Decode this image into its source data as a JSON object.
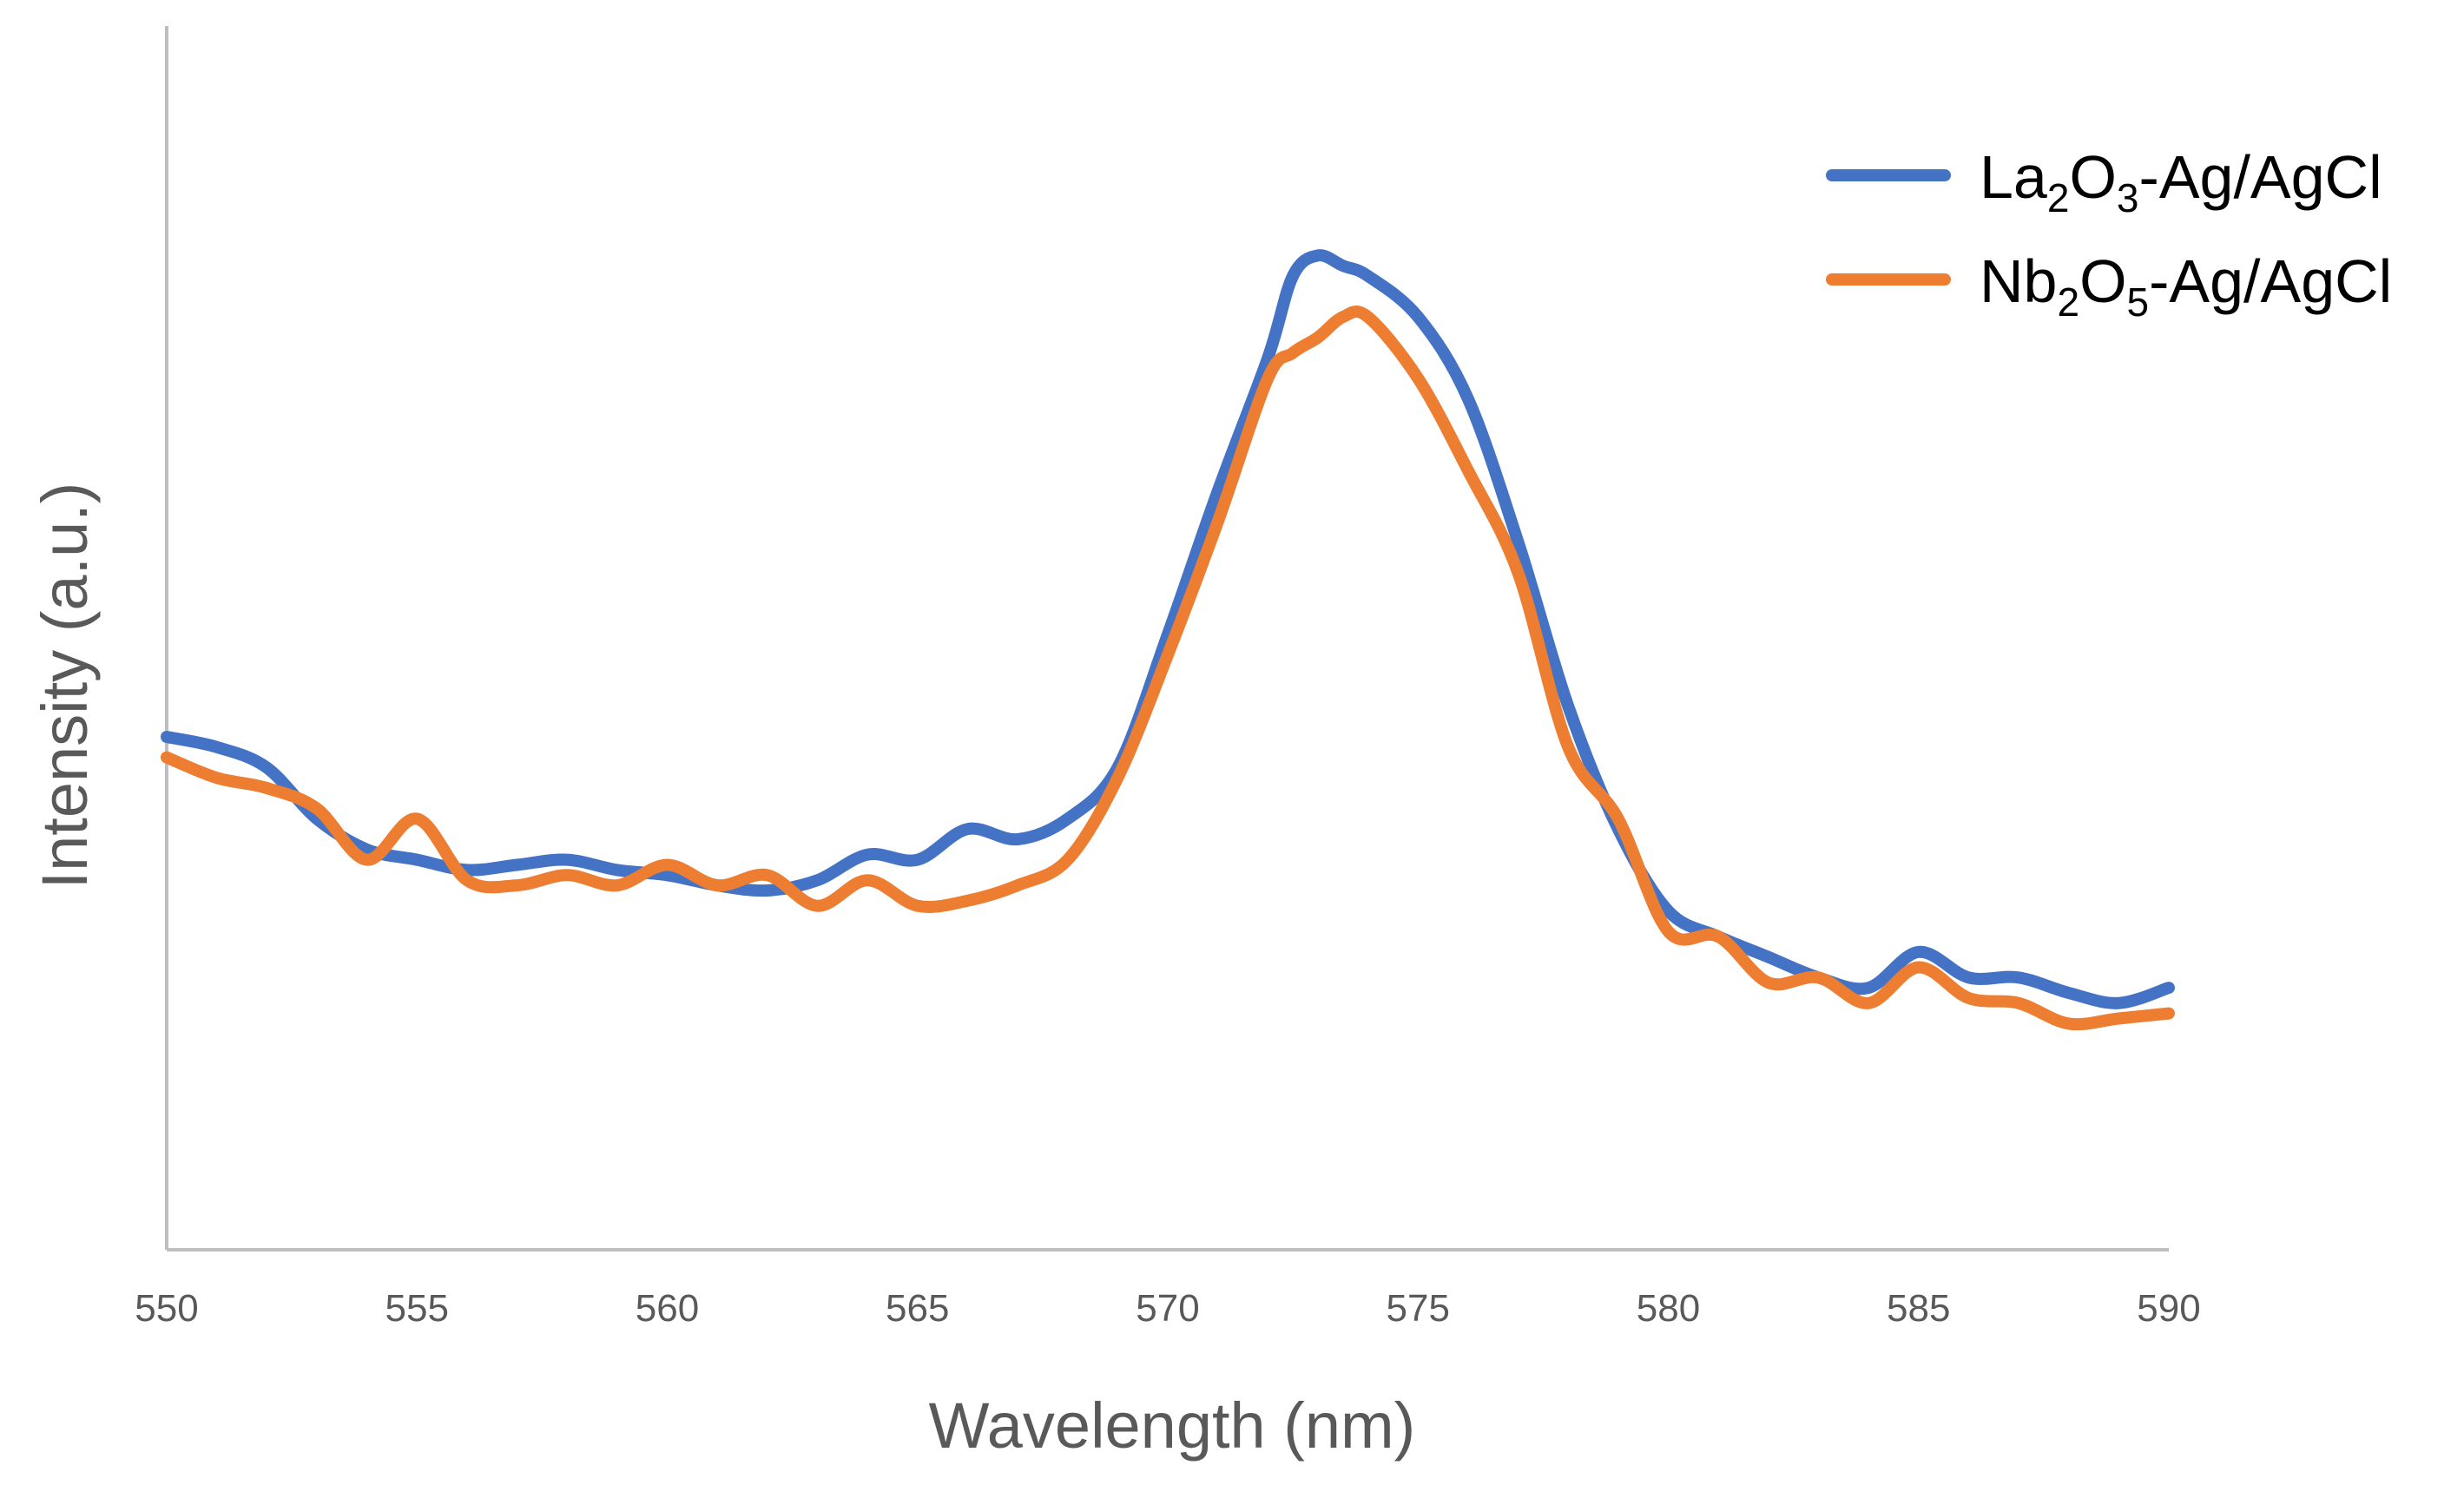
{
  "chart_data": {
    "type": "line",
    "title": "",
    "xlabel": "Wavelength (nm)",
    "ylabel": "Intensity (a.u.)",
    "xlim": [
      550,
      590
    ],
    "ylim": [
      0,
      100
    ],
    "x_ticks": [
      "550",
      "555",
      "560",
      "565",
      "570",
      "575",
      "580",
      "585",
      "590"
    ],
    "y_ticks_visible": false,
    "grid": false,
    "legend_position": "top-right",
    "x": [
      550,
      551,
      552,
      553,
      554,
      555,
      556,
      557,
      558,
      559,
      560,
      561,
      562,
      563,
      564,
      565,
      566,
      567,
      568,
      569,
      570,
      571,
      572,
      572.5,
      573,
      573.5,
      574,
      575,
      576,
      577,
      578,
      579,
      580,
      581,
      582,
      583,
      584,
      585,
      586,
      587,
      588,
      589,
      590
    ],
    "series": [
      {
        "name": "La2O3-Ag/AgCl",
        "legend_main": "La",
        "legend_sub1": "2",
        "legend_mid": "O",
        "legend_sub2": "3",
        "legend_tail": "-Ag/AgCl",
        "color": "#4472C4",
        "values": [
          45,
          44,
          42,
          37,
          34,
          33,
          32,
          32.5,
          33,
          32,
          31.5,
          30.5,
          30,
          31,
          33.5,
          33,
          36,
          35,
          37,
          42,
          55,
          69,
          82,
          90,
          92,
          91,
          90,
          86,
          78,
          64,
          48,
          36,
          28,
          25.5,
          23.5,
          21.5,
          20.5,
          24,
          21.5,
          21.5,
          20,
          19,
          20.5
        ]
      },
      {
        "name": "Nb2O5-Ag/AgCl",
        "legend_main": "Nb",
        "legend_sub1": "2",
        "legend_mid": "O",
        "legend_sub2": "5",
        "legend_tail": "-Ag/AgCl",
        "color": "#ED7D31",
        "values": [
          43,
          41,
          40,
          38,
          33,
          37,
          31,
          30.5,
          31.5,
          30.5,
          32.5,
          30.5,
          31.5,
          28.5,
          31,
          28.5,
          29,
          30.5,
          33,
          41,
          53,
          66,
          80,
          82.5,
          84,
          86,
          86,
          80,
          71,
          61,
          44,
          37,
          26,
          25.5,
          21,
          21.5,
          19,
          22.5,
          19.5,
          19,
          17,
          17.5,
          18
        ]
      }
    ]
  }
}
